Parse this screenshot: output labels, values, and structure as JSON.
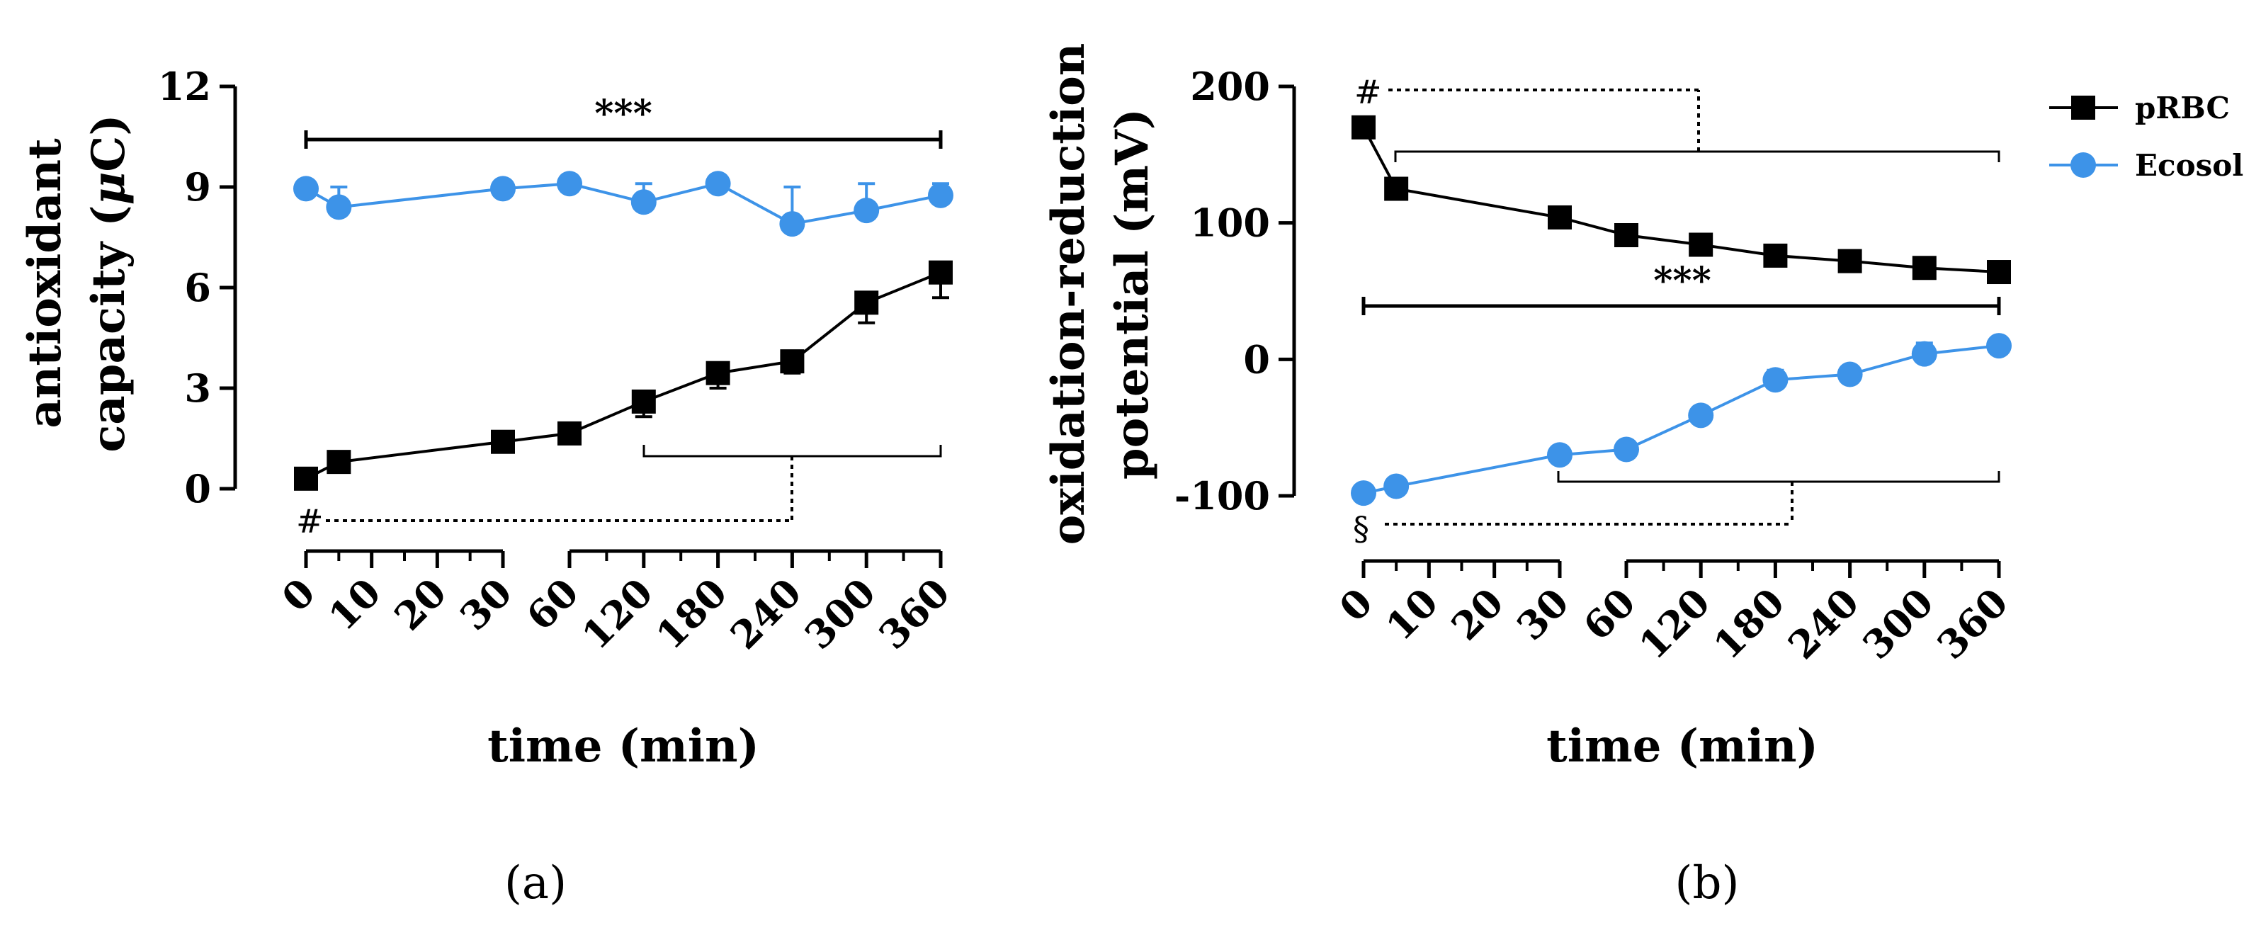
{
  "colors": {
    "pRBC": "#000000",
    "Ecosol": "#3d93e8"
  },
  "legend": {
    "entries": [
      {
        "label": "pRBC",
        "color": "#000000",
        "marker": "square"
      },
      {
        "label": "Ecosol",
        "color": "#3d93e8",
        "marker": "circle"
      }
    ]
  },
  "chart_data": [
    {
      "type": "line",
      "panel_label": "(a)",
      "ylabel_pre": "antioxidant",
      "ylabel_line2_pre": "capacity (",
      "ylabel_mu": "μ",
      "ylabel_line2_post": "C)",
      "xlabel": "time (min)",
      "ylim": [
        0,
        12
      ],
      "yticks": [
        "0",
        "3",
        "6",
        "9",
        "12"
      ],
      "xticks": [
        "0",
        "10",
        "20",
        "30",
        "60",
        "120",
        "180",
        "240",
        "300",
        "360"
      ],
      "x": [
        0,
        5,
        30,
        60,
        120,
        180,
        240,
        300,
        360
      ],
      "series": [
        {
          "name": "pRBC",
          "values": [
            0.3,
            0.8,
            1.4,
            1.65,
            2.6,
            3.45,
            3.8,
            5.55,
            6.45
          ],
          "errors": [
            0.1,
            0.1,
            0.1,
            0.25,
            0.45,
            0.45,
            0.35,
            0.6,
            0.75
          ]
        },
        {
          "name": "Ecosol",
          "values": [
            8.95,
            8.4,
            8.95,
            9.1,
            8.55,
            9.1,
            7.9,
            8.3,
            8.75
          ],
          "errors": [
            0.1,
            0.6,
            0.1,
            0.1,
            0.55,
            0.1,
            1.1,
            0.8,
            0.35
          ]
        }
      ],
      "annotations": {
        "top": "***",
        "bottom": "#"
      }
    },
    {
      "type": "line",
      "panel_label": "(b)",
      "ylabel_line1": "oxidation-reduction",
      "ylabel_line2": "potential (mV)",
      "xlabel": "time (min)",
      "ylim": [
        -100,
        200
      ],
      "yticks": [
        "-100",
        "0",
        "100",
        "200"
      ],
      "xticks": [
        "0",
        "10",
        "20",
        "30",
        "60",
        "120",
        "180",
        "240",
        "300",
        "360"
      ],
      "x": [
        0,
        5,
        30,
        60,
        120,
        180,
        240,
        300,
        360
      ],
      "series": [
        {
          "name": "pRBC",
          "values": [
            170,
            125,
            104,
            91,
            84,
            76,
            72,
            67,
            64
          ],
          "errors": [
            5,
            2,
            3,
            2,
            2,
            2,
            2,
            2,
            2
          ]
        },
        {
          "name": "Ecosol",
          "values": [
            -98,
            -93,
            -70,
            -66,
            -41,
            -15,
            -11,
            4,
            10
          ],
          "errors": [
            3,
            3,
            3,
            3,
            6,
            7,
            5,
            8,
            4
          ]
        }
      ],
      "annotations": {
        "top_hash": "#",
        "middle": "***",
        "bottom": "§"
      }
    }
  ]
}
